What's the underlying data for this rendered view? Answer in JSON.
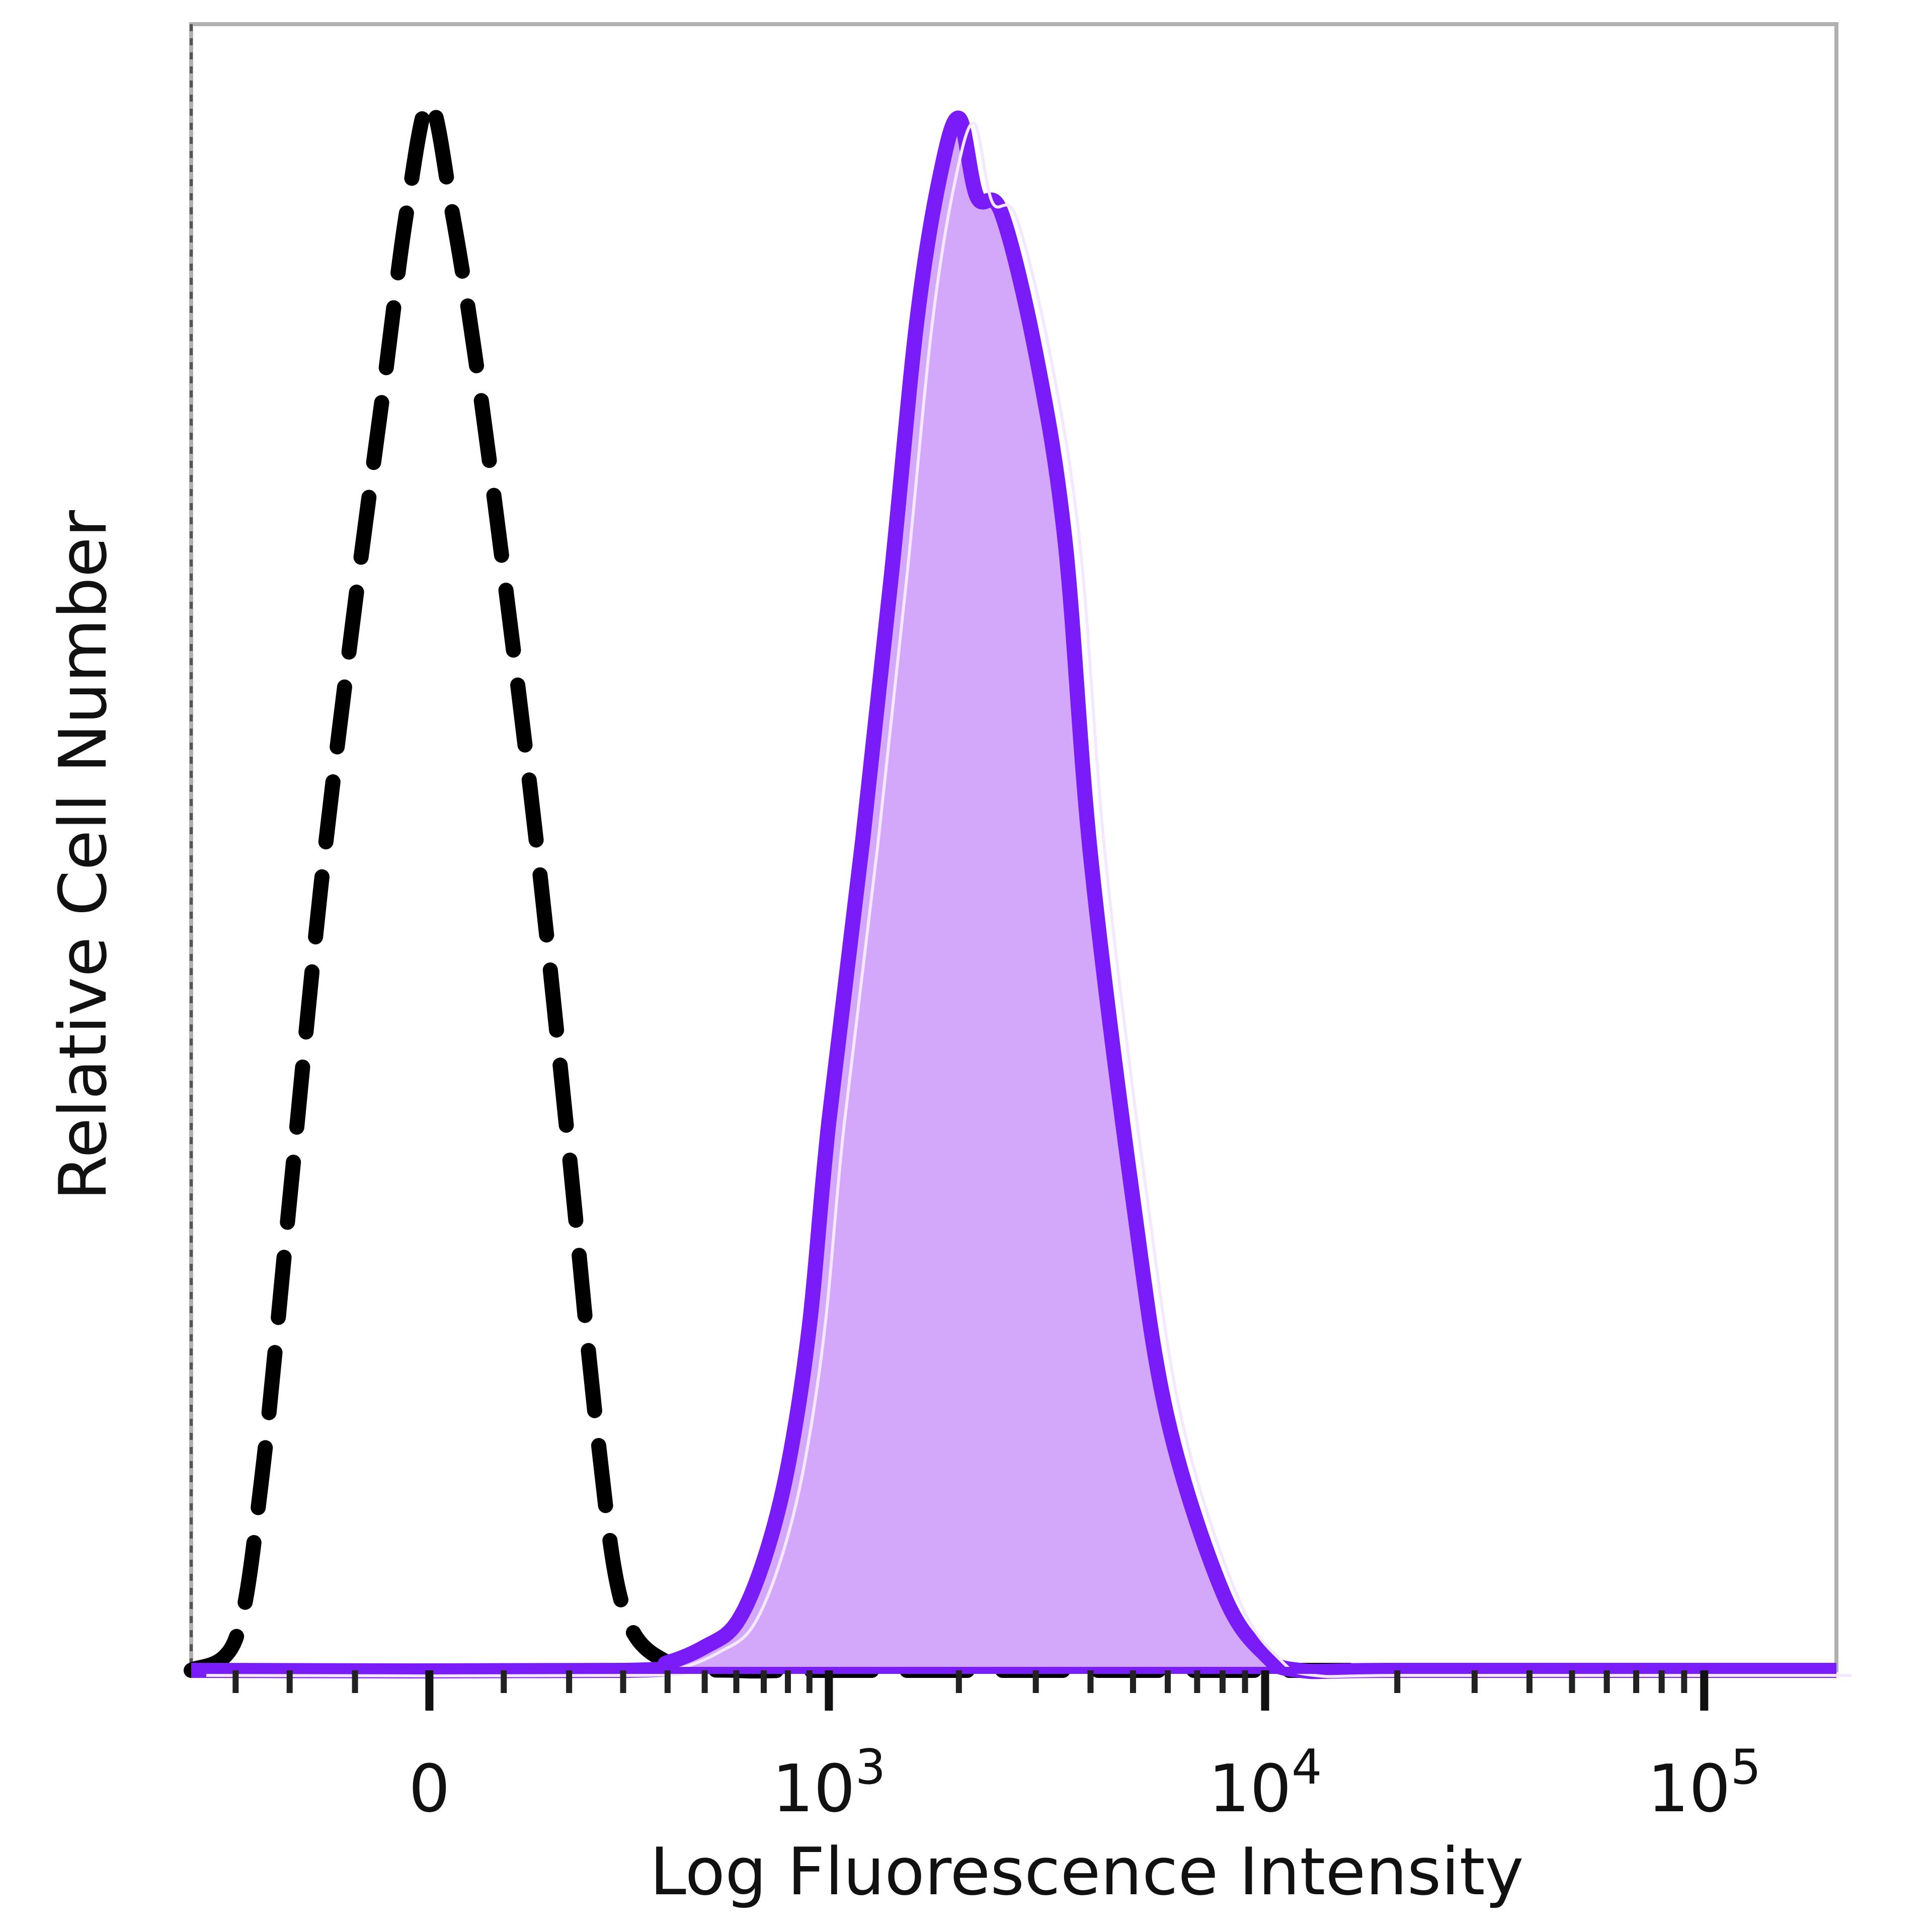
{
  "chart_data": {
    "type": "area",
    "xlabel": "Log Fluorescence Intensity",
    "ylabel": "Relative Cell Number",
    "x_scale": "biexponential",
    "xlim": [
      -400,
      200000
    ],
    "ylim": [
      0,
      105
    ],
    "grid": false,
    "legend": "none",
    "x_ticks": [
      {
        "value": 0,
        "label": "0",
        "exp": ""
      },
      {
        "value": 1000,
        "label": "10",
        "exp": "3"
      },
      {
        "value": 10000,
        "label": "10",
        "exp": "4"
      },
      {
        "value": 100000,
        "label": "10",
        "exp": "5"
      }
    ],
    "series": [
      {
        "style": "dashed",
        "color": "#000000",
        "x": [
          -400,
          -300,
          -250,
          -200,
          -150,
          -100,
          -60,
          -30,
          0,
          30,
          60,
          100,
          150,
          200,
          250,
          300,
          400,
          600,
          1000,
          10000,
          200000
        ],
        "y": [
          0,
          2,
          12,
          30,
          50,
          68,
          82,
          93,
          100,
          93,
          84,
          70,
          52,
          33,
          15,
          4,
          0.5,
          0,
          0,
          0,
          0
        ]
      },
      {
        "style": "filled",
        "color": "#7a1cf7",
        "fill": "#d3a8fb",
        "x": [
          -400,
          300,
          400,
          500,
          600,
          700,
          800,
          900,
          1000,
          1200,
          1400,
          1600,
          1800,
          2000,
          2200,
          2500,
          3000,
          3500,
          4000,
          5000,
          6000,
          8000,
          10000,
          12000,
          20000,
          200000
        ],
        "y": [
          0,
          0,
          0.5,
          1.5,
          3,
          7,
          13,
          22,
          35,
          53,
          70,
          86,
          95,
          99,
          94,
          93,
          84,
          72,
          52,
          30,
          16,
          5,
          1,
          0,
          0,
          0
        ]
      }
    ]
  }
}
